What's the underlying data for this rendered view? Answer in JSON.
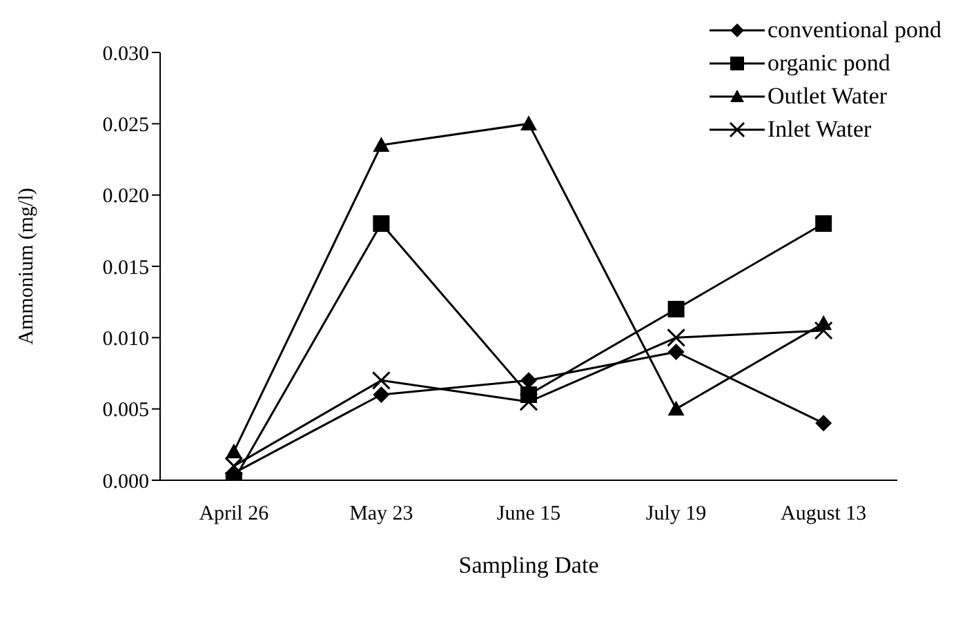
{
  "chart_data": {
    "type": "line",
    "xlabel": "Sampling Date",
    "ylabel": "Ammonium (mg/l)",
    "categories": [
      "April 26",
      "May 23",
      "June 15",
      "July 19",
      "August 13"
    ],
    "series": [
      {
        "name": "conventional pond",
        "color": "#000000",
        "marker": "diamond",
        "values": [
          0.0005,
          0.006,
          0.007,
          0.009,
          0.004
        ]
      },
      {
        "name": "organic pond",
        "color": "#000000",
        "marker": "square",
        "values": [
          0,
          0.018,
          0.006,
          0.012,
          0.018
        ]
      },
      {
        "name": "Outlet Water",
        "color": "#000000",
        "marker": "triangle",
        "values": [
          0.002,
          0.0235,
          0.025,
          0.005,
          0.011
        ]
      },
      {
        "name": "Inlet Water",
        "color": "#000000",
        "marker": "cross",
        "values": [
          0.001,
          0.007,
          0.0055,
          0.01,
          0.0105
        ]
      }
    ],
    "ylim": [
      0,
      0.03
    ],
    "yticks": [
      {
        "value": 0,
        "label": "0.000"
      },
      {
        "value": 0.005,
        "label": "0.005"
      },
      {
        "value": 0.01,
        "label": "0.010"
      },
      {
        "value": 0.015,
        "label": "0.015"
      },
      {
        "value": 0.02,
        "label": "0.020"
      },
      {
        "value": 0.025,
        "label": "0.025"
      },
      {
        "value": 0.03,
        "label": "0.030"
      }
    ],
    "grid": false,
    "legend": "top right",
    "line_style": "solid"
  }
}
